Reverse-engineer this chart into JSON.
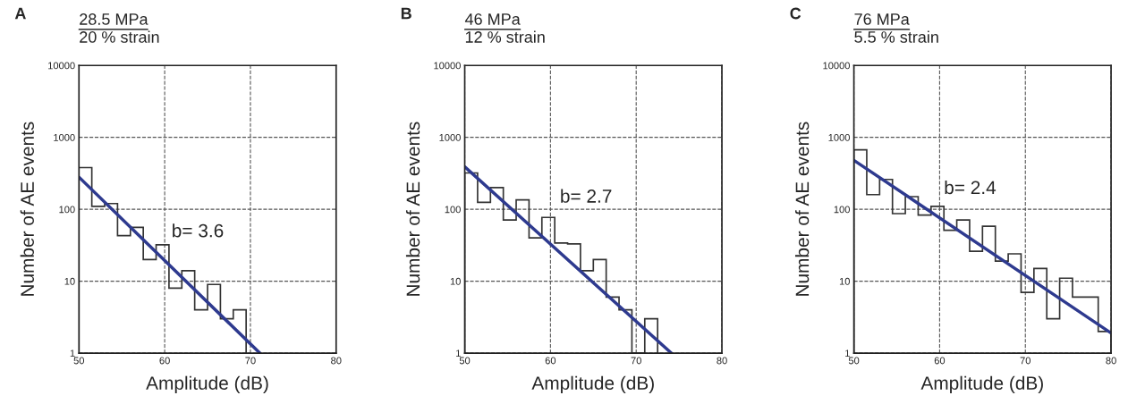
{
  "chart_data": [
    {
      "type": "histogram",
      "title": "A",
      "subtitle": "28.5 MPa",
      "xlabel": "Amplitude (dB)",
      "ylabel": "Number of AE events",
      "log": "y",
      "grid": true,
      "legend": false,
      "xlim": [
        50,
        80
      ],
      "xticks": [
        50,
        60,
        70,
        80
      ],
      "ylim": [
        1,
        10000
      ],
      "yticks": [
        1,
        10,
        100,
        1000,
        10000
      ],
      "annotations": [
        "20 % strain",
        "b= 3.6"
      ],
      "series": [
        {
          "color": "#333333",
          "bins": [
            50,
            51.5,
            53,
            54.5,
            56,
            57.5,
            59,
            60.5,
            62,
            63.5,
            65,
            66.5,
            68,
            69.5
          ],
          "values": [
            380,
            110,
            120,
            43,
            56,
            20,
            32,
            8,
            14,
            4,
            9,
            3,
            4
          ]
        },
        {
          "type": "line",
          "color": "#2e3a8f",
          "x": [
            50,
            71.1
          ],
          "values": [
            280,
            1
          ]
        }
      ]
    },
    {
      "type": "histogram",
      "title": "B",
      "subtitle": "46 MPa",
      "xlabel": "Amplitude (dB)",
      "ylabel": "Number of AE events",
      "log": "y",
      "grid": true,
      "legend": false,
      "xlim": [
        50,
        80
      ],
      "xticks": [
        50,
        60,
        70,
        80
      ],
      "ylim": [
        1,
        10000
      ],
      "yticks": [
        1,
        10,
        100,
        1000,
        10000
      ],
      "annotations": [
        "12 % strain",
        "b= 2.7"
      ],
      "series": [
        {
          "color": "#333333",
          "bins": [
            50,
            51.5,
            53,
            54.5,
            56,
            57.5,
            59,
            60.5,
            62,
            63.5,
            65,
            66.5,
            68,
            69.5,
            71,
            72.5
          ],
          "values": [
            320,
            125,
            200,
            71,
            135,
            40,
            77,
            34,
            33,
            14,
            20,
            6,
            4,
            1,
            3
          ]
        },
        {
          "type": "line",
          "color": "#2e3a8f",
          "x": [
            50,
            74.1
          ],
          "values": [
            390,
            1
          ]
        }
      ]
    },
    {
      "type": "histogram",
      "title": "C",
      "subtitle": "76 MPa",
      "xlabel": "Amplitude (dB)",
      "ylabel": "Number of AE events",
      "log": "y",
      "grid": true,
      "legend": false,
      "xlim": [
        50,
        80
      ],
      "xticks": [
        50,
        60,
        70,
        80
      ],
      "ylim": [
        1,
        10000
      ],
      "yticks": [
        1,
        10,
        100,
        1000,
        10000
      ],
      "annotations": [
        "5.5 % strain",
        "b= 2.4"
      ],
      "series": [
        {
          "color": "#333333",
          "bins": [
            50,
            51.5,
            53,
            54.5,
            56,
            57.5,
            59,
            60.5,
            62,
            63.5,
            65,
            66.5,
            68,
            69.5,
            71,
            72.5,
            74,
            75.5,
            77,
            78.5,
            80
          ],
          "values": [
            670,
            160,
            260,
            87,
            150,
            83,
            110,
            51,
            71,
            26,
            58,
            19,
            24,
            7,
            15,
            3,
            11,
            6,
            6,
            2
          ]
        },
        {
          "type": "line",
          "color": "#2e3a8f",
          "x": [
            50,
            80
          ],
          "values": [
            480,
            1.9
          ]
        }
      ]
    }
  ]
}
